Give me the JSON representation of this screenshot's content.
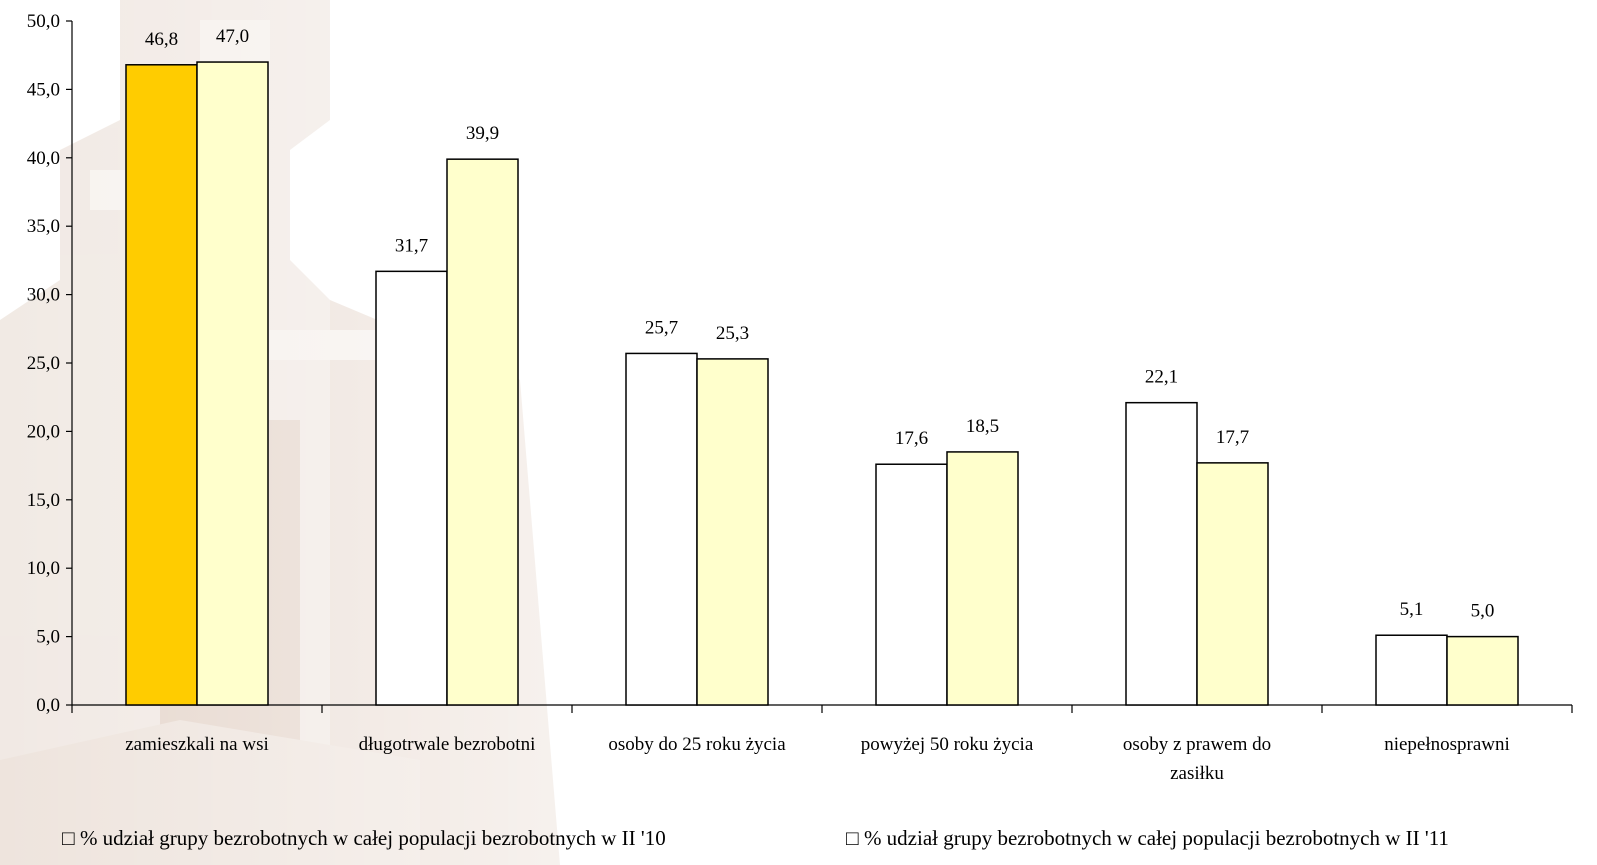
{
  "chart_data": {
    "type": "bar",
    "categories": [
      [
        "zamieszkali na wsi"
      ],
      [
        "długotrwale bezrobotni"
      ],
      [
        "osoby do 25 roku życia"
      ],
      [
        "powyżej 50 roku życia"
      ],
      [
        "osoby z prawem do",
        "zasiłku"
      ],
      [
        "niepełnosprawni"
      ]
    ],
    "series": [
      {
        "name": "% udział grupy bezrobotnych w całej populacji bezrobotnych  w II '10",
        "values": [
          46.8,
          31.7,
          25.7,
          17.6,
          22.1,
          5.1
        ],
        "labels": [
          "46,8",
          "31,7",
          "25,7",
          "17,6",
          "22,1",
          "5,1"
        ],
        "color": "#ffffff",
        "highlight_color": "#ffcc00"
      },
      {
        "name": "% udział grupy bezrobotnych w całej populacji bezrobotnych  w II '11",
        "values": [
          47.0,
          39.9,
          25.3,
          18.5,
          17.7,
          5.0
        ],
        "labels": [
          "47,0",
          "39,9",
          "25,3",
          "18,5",
          "17,7",
          "5,0"
        ],
        "color": "#ffffcc"
      }
    ],
    "ylim": [
      0,
      50
    ],
    "yticks": [
      "0,0",
      "5,0",
      "10,0",
      "15,0",
      "20,0",
      "25,0",
      "30,0",
      "35,0",
      "40,0",
      "45,0",
      "50,0"
    ],
    "xlabel": "",
    "ylabel": "",
    "title": "",
    "grid": false,
    "legend_position": "bottom",
    "legend_markers": [
      "□",
      "□"
    ]
  },
  "colors": {
    "background_art": "#c9a891",
    "bar_border": "#000000",
    "axis": "#000000"
  }
}
